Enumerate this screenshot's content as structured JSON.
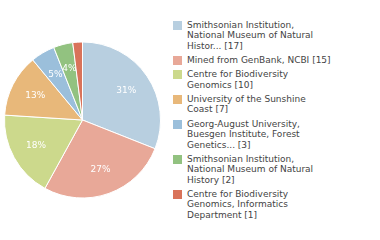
{
  "chart_data": {
    "type": "pie",
    "categories": [
      "Smithsonian Institution,\nNational Museum of Natural\nHistor... [17]",
      "Mined from GenBank, NCBI [15]",
      "Centre for Biodiversity\nGenomics [10]",
      "University of the Sunshine\nCoast [7]",
      "Georg-August University,\nBuesgen Institute, Forest\nGenetics... [3]",
      "Smithsonian Institution,\nNational Museum of Natural\nHistory [2]",
      "Centre for Biodiversity\nGenomics, Informatics\nDepartment [1]"
    ],
    "values": [
      31,
      27,
      18,
      13,
      5,
      4,
      2
    ],
    "value_labels": [
      "31%",
      "27%",
      "18%",
      "13%",
      "5%",
      "4%",
      null
    ],
    "colors": [
      "#b8cfe0",
      "#e8a898",
      "#ccd98c",
      "#e8b87a",
      "#9bbfdb",
      "#92c280",
      "#d9735a"
    ],
    "data_labels": true,
    "legend": "right"
  }
}
